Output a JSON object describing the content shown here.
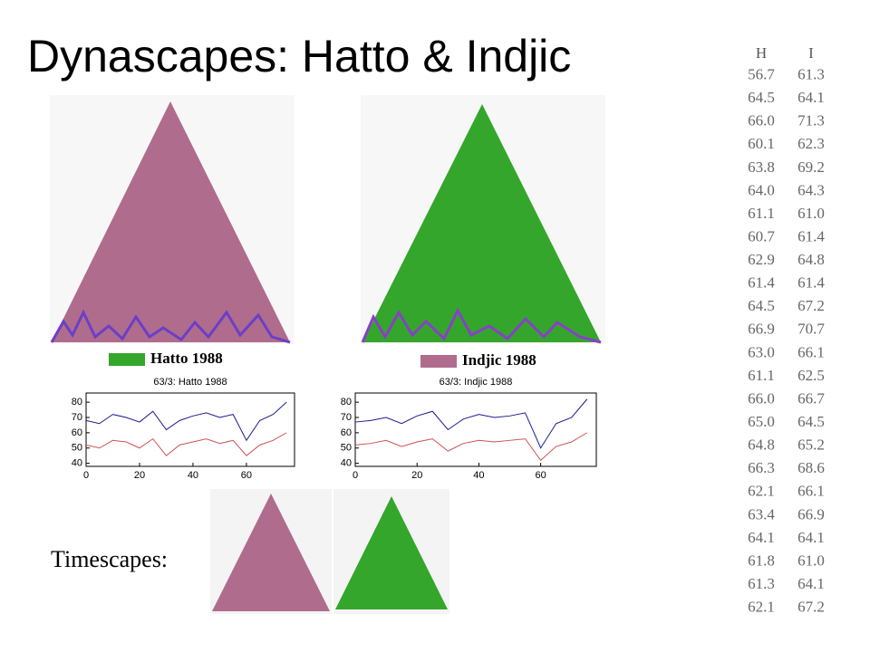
{
  "title": "Dynascapes: Hatto & Indjic",
  "panels": [
    {
      "legend": "Hatto 1988",
      "chart": {
        "type": "line",
        "title": "63/3: Hatto 1988",
        "x": [
          0,
          5,
          10,
          15,
          20,
          25,
          30,
          35,
          40,
          45,
          50,
          55,
          60,
          65,
          70,
          75
        ],
        "series": [
          {
            "color": "#1a1a8c",
            "values": [
              68,
              66,
              72,
              70,
              67,
              74,
              62,
              68,
              71,
              73,
              70,
              72,
              55,
              68,
              72,
              80
            ]
          },
          {
            "color": "#d05050",
            "values": [
              52,
              50,
              55,
              54,
              50,
              56,
              45,
              52,
              54,
              56,
              53,
              55,
              45,
              52,
              55,
              60
            ]
          }
        ],
        "xlim": [
          0,
          78
        ],
        "ylim": [
          38,
          86
        ],
        "xticks": [
          0,
          20,
          40,
          60
        ],
        "yticks": [
          40,
          50,
          60,
          70,
          80
        ]
      }
    },
    {
      "legend": "Indjic 1988",
      "chart": {
        "type": "line",
        "title": "63/3: Indjic 1988",
        "x": [
          0,
          5,
          10,
          15,
          20,
          25,
          30,
          35,
          40,
          45,
          50,
          55,
          60,
          65,
          70,
          75
        ],
        "series": [
          {
            "color": "#1a1a8c",
            "values": [
              67,
              68,
              70,
              66,
              71,
              74,
              62,
              69,
              72,
              70,
              71,
              73,
              50,
              66,
              70,
              82
            ]
          },
          {
            "color": "#d05050",
            "values": [
              52,
              53,
              55,
              51,
              54,
              56,
              48,
              53,
              55,
              54,
              55,
              56,
              42,
              51,
              54,
              60
            ]
          }
        ],
        "xlim": [
          0,
          78
        ],
        "ylim": [
          38,
          86
        ],
        "xticks": [
          0,
          20,
          40,
          60
        ],
        "yticks": [
          40,
          50,
          60,
          70,
          80
        ]
      }
    }
  ],
  "timescapes_label": "Timescapes:",
  "table": {
    "headers": [
      "H",
      "I"
    ],
    "rows": [
      [
        "56.7",
        "61.3"
      ],
      [
        "64.5",
        "64.1"
      ],
      [
        "66.0",
        "71.3"
      ],
      [
        "60.1",
        "62.3"
      ],
      [
        "63.8",
        "69.2"
      ],
      [
        "64.0",
        "64.3"
      ],
      [
        "61.1",
        "61.0"
      ],
      [
        "60.7",
        "61.4"
      ],
      [
        "62.9",
        "64.8"
      ],
      [
        "61.4",
        "61.4"
      ],
      [
        "64.5",
        "67.2"
      ],
      [
        "66.9",
        "70.7"
      ],
      [
        "63.0",
        "66.1"
      ],
      [
        "61.1",
        "62.5"
      ],
      [
        "66.0",
        "66.7"
      ],
      [
        "65.0",
        "64.5"
      ],
      [
        "64.8",
        "65.2"
      ],
      [
        "66.3",
        "68.6"
      ],
      [
        "62.1",
        "66.1"
      ],
      [
        "63.4",
        "66.9"
      ],
      [
        "64.1",
        "64.1"
      ],
      [
        "61.8",
        "61.0"
      ],
      [
        "61.3",
        "64.1"
      ],
      [
        "62.1",
        "67.2"
      ]
    ]
  }
}
